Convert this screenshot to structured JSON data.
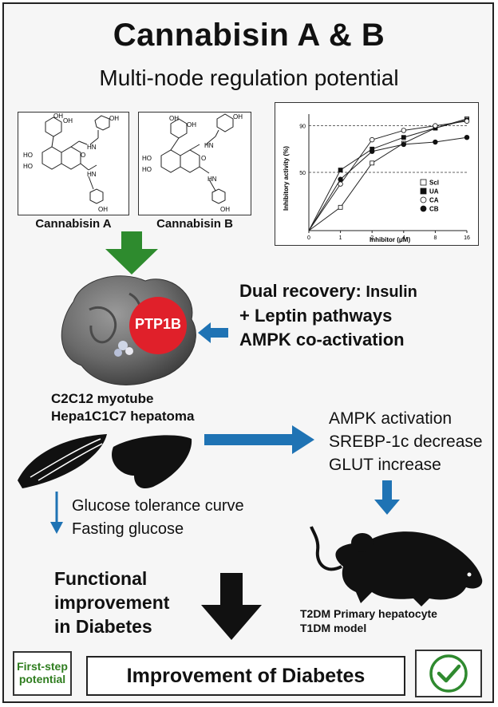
{
  "header": {
    "title": "Cannabisin A & B",
    "subtitle": "Multi-node regulation potential"
  },
  "structures": {
    "a_label": "Cannabisin A",
    "b_label": "Cannabisin B",
    "oh": "OH",
    "hn": "HN",
    "ho": "HO",
    "o": "O"
  },
  "protein": {
    "target_label": "PTP1B",
    "cells_line1": "C2C12 myotube",
    "cells_line2": "Hepa1C1C7 hepatoma"
  },
  "dual_recovery": {
    "line1_big": "Dual recovery:",
    "line1_rest": " Insulin",
    "line2": "+ Leptin pathways",
    "line3": "AMPK co-activation"
  },
  "mechanisms": {
    "line1": "AMPK activation",
    "line2": "SREBP-1c decrease",
    "line3": "GLUT increase"
  },
  "glucose": {
    "line1": "Glucose tolerance curve",
    "line2": "Fasting glucose"
  },
  "functional": {
    "line1": "Functional",
    "line2": "improvement",
    "line3": "in Diabetes"
  },
  "models": {
    "line1": "T2DM Primary hepatocyte",
    "line2": "T1DM model"
  },
  "footer": {
    "badge_line1": "First-step",
    "badge_line2": "potential",
    "improvement": "Improvement of Diabetes"
  },
  "colors": {
    "green_arrow": "#2e8b2e",
    "blue_arrow": "#1f73b4",
    "ptp1b_red": "#e0202a",
    "check_green": "#2f8a2f"
  },
  "chart_data": {
    "type": "line",
    "xlabel": "Inhibitor (μM)",
    "ylabel": "Inhibitory activity (%)",
    "x": [
      0,
      1,
      2,
      4,
      8,
      16
    ],
    "x_ticks": [
      "0",
      "1",
      "2",
      "4",
      "8",
      "16"
    ],
    "y_ticks": [
      "50",
      "90"
    ],
    "ylim": [
      0,
      100
    ],
    "reference_lines": [
      50,
      90
    ],
    "series": [
      {
        "name": "Scl",
        "marker": "open-square",
        "values": [
          0,
          20,
          58,
          75,
          88,
          96
        ]
      },
      {
        "name": "UA",
        "marker": "filled-square",
        "values": [
          0,
          52,
          70,
          80,
          88,
          95
        ]
      },
      {
        "name": "CA",
        "marker": "open-circle",
        "values": [
          0,
          40,
          78,
          86,
          90,
          94
        ]
      },
      {
        "name": "CB",
        "marker": "filled-circle",
        "values": [
          0,
          44,
          68,
          74,
          76,
          80
        ]
      }
    ],
    "legend_position": "lower-right"
  }
}
